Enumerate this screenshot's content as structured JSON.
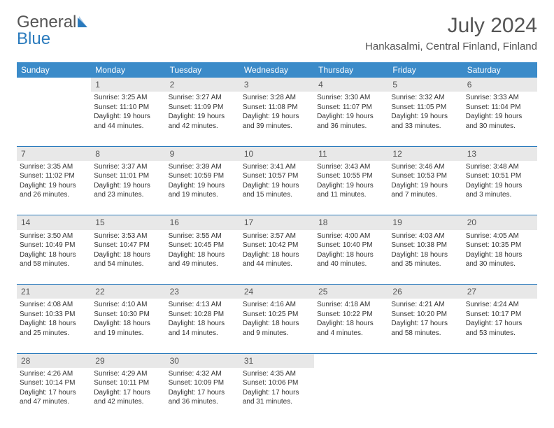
{
  "logo": {
    "general": "General",
    "blue": "Blue"
  },
  "title": "July 2024",
  "location": "Hankasalmi, Central Finland, Finland",
  "weekdays": [
    "Sunday",
    "Monday",
    "Tuesday",
    "Wednesday",
    "Thursday",
    "Friday",
    "Saturday"
  ],
  "colors": {
    "header_bg": "#3b8bc9",
    "daynum_bg": "#e8e8e8",
    "separator": "#2b7bbd",
    "logo_blue": "#2b7bbd",
    "text": "#333333"
  },
  "weeks": [
    {
      "nums": [
        "",
        "1",
        "2",
        "3",
        "4",
        "5",
        "6"
      ],
      "cells": [
        {
          "sunrise": "",
          "sunset": "",
          "daylight": ""
        },
        {
          "sunrise": "Sunrise: 3:25 AM",
          "sunset": "Sunset: 11:10 PM",
          "daylight": "Daylight: 19 hours and 44 minutes."
        },
        {
          "sunrise": "Sunrise: 3:27 AM",
          "sunset": "Sunset: 11:09 PM",
          "daylight": "Daylight: 19 hours and 42 minutes."
        },
        {
          "sunrise": "Sunrise: 3:28 AM",
          "sunset": "Sunset: 11:08 PM",
          "daylight": "Daylight: 19 hours and 39 minutes."
        },
        {
          "sunrise": "Sunrise: 3:30 AM",
          "sunset": "Sunset: 11:07 PM",
          "daylight": "Daylight: 19 hours and 36 minutes."
        },
        {
          "sunrise": "Sunrise: 3:32 AM",
          "sunset": "Sunset: 11:05 PM",
          "daylight": "Daylight: 19 hours and 33 minutes."
        },
        {
          "sunrise": "Sunrise: 3:33 AM",
          "sunset": "Sunset: 11:04 PM",
          "daylight": "Daylight: 19 hours and 30 minutes."
        }
      ]
    },
    {
      "nums": [
        "7",
        "8",
        "9",
        "10",
        "11",
        "12",
        "13"
      ],
      "cells": [
        {
          "sunrise": "Sunrise: 3:35 AM",
          "sunset": "Sunset: 11:02 PM",
          "daylight": "Daylight: 19 hours and 26 minutes."
        },
        {
          "sunrise": "Sunrise: 3:37 AM",
          "sunset": "Sunset: 11:01 PM",
          "daylight": "Daylight: 19 hours and 23 minutes."
        },
        {
          "sunrise": "Sunrise: 3:39 AM",
          "sunset": "Sunset: 10:59 PM",
          "daylight": "Daylight: 19 hours and 19 minutes."
        },
        {
          "sunrise": "Sunrise: 3:41 AM",
          "sunset": "Sunset: 10:57 PM",
          "daylight": "Daylight: 19 hours and 15 minutes."
        },
        {
          "sunrise": "Sunrise: 3:43 AM",
          "sunset": "Sunset: 10:55 PM",
          "daylight": "Daylight: 19 hours and 11 minutes."
        },
        {
          "sunrise": "Sunrise: 3:46 AM",
          "sunset": "Sunset: 10:53 PM",
          "daylight": "Daylight: 19 hours and 7 minutes."
        },
        {
          "sunrise": "Sunrise: 3:48 AM",
          "sunset": "Sunset: 10:51 PM",
          "daylight": "Daylight: 19 hours and 3 minutes."
        }
      ]
    },
    {
      "nums": [
        "14",
        "15",
        "16",
        "17",
        "18",
        "19",
        "20"
      ],
      "cells": [
        {
          "sunrise": "Sunrise: 3:50 AM",
          "sunset": "Sunset: 10:49 PM",
          "daylight": "Daylight: 18 hours and 58 minutes."
        },
        {
          "sunrise": "Sunrise: 3:53 AM",
          "sunset": "Sunset: 10:47 PM",
          "daylight": "Daylight: 18 hours and 54 minutes."
        },
        {
          "sunrise": "Sunrise: 3:55 AM",
          "sunset": "Sunset: 10:45 PM",
          "daylight": "Daylight: 18 hours and 49 minutes."
        },
        {
          "sunrise": "Sunrise: 3:57 AM",
          "sunset": "Sunset: 10:42 PM",
          "daylight": "Daylight: 18 hours and 44 minutes."
        },
        {
          "sunrise": "Sunrise: 4:00 AM",
          "sunset": "Sunset: 10:40 PM",
          "daylight": "Daylight: 18 hours and 40 minutes."
        },
        {
          "sunrise": "Sunrise: 4:03 AM",
          "sunset": "Sunset: 10:38 PM",
          "daylight": "Daylight: 18 hours and 35 minutes."
        },
        {
          "sunrise": "Sunrise: 4:05 AM",
          "sunset": "Sunset: 10:35 PM",
          "daylight": "Daylight: 18 hours and 30 minutes."
        }
      ]
    },
    {
      "nums": [
        "21",
        "22",
        "23",
        "24",
        "25",
        "26",
        "27"
      ],
      "cells": [
        {
          "sunrise": "Sunrise: 4:08 AM",
          "sunset": "Sunset: 10:33 PM",
          "daylight": "Daylight: 18 hours and 25 minutes."
        },
        {
          "sunrise": "Sunrise: 4:10 AM",
          "sunset": "Sunset: 10:30 PM",
          "daylight": "Daylight: 18 hours and 19 minutes."
        },
        {
          "sunrise": "Sunrise: 4:13 AM",
          "sunset": "Sunset: 10:28 PM",
          "daylight": "Daylight: 18 hours and 14 minutes."
        },
        {
          "sunrise": "Sunrise: 4:16 AM",
          "sunset": "Sunset: 10:25 PM",
          "daylight": "Daylight: 18 hours and 9 minutes."
        },
        {
          "sunrise": "Sunrise: 4:18 AM",
          "sunset": "Sunset: 10:22 PM",
          "daylight": "Daylight: 18 hours and 4 minutes."
        },
        {
          "sunrise": "Sunrise: 4:21 AM",
          "sunset": "Sunset: 10:20 PM",
          "daylight": "Daylight: 17 hours and 58 minutes."
        },
        {
          "sunrise": "Sunrise: 4:24 AM",
          "sunset": "Sunset: 10:17 PM",
          "daylight": "Daylight: 17 hours and 53 minutes."
        }
      ]
    },
    {
      "nums": [
        "28",
        "29",
        "30",
        "31",
        "",
        "",
        ""
      ],
      "cells": [
        {
          "sunrise": "Sunrise: 4:26 AM",
          "sunset": "Sunset: 10:14 PM",
          "daylight": "Daylight: 17 hours and 47 minutes."
        },
        {
          "sunrise": "Sunrise: 4:29 AM",
          "sunset": "Sunset: 10:11 PM",
          "daylight": "Daylight: 17 hours and 42 minutes."
        },
        {
          "sunrise": "Sunrise: 4:32 AM",
          "sunset": "Sunset: 10:09 PM",
          "daylight": "Daylight: 17 hours and 36 minutes."
        },
        {
          "sunrise": "Sunrise: 4:35 AM",
          "sunset": "Sunset: 10:06 PM",
          "daylight": "Daylight: 17 hours and 31 minutes."
        },
        {
          "sunrise": "",
          "sunset": "",
          "daylight": ""
        },
        {
          "sunrise": "",
          "sunset": "",
          "daylight": ""
        },
        {
          "sunrise": "",
          "sunset": "",
          "daylight": ""
        }
      ]
    }
  ]
}
